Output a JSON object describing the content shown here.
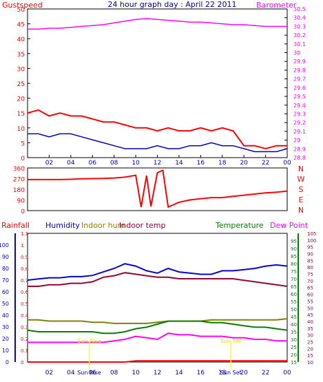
{
  "chart_data": [
    {
      "type": "line",
      "title": "24 hour graph day : April 22 2011",
      "left_label": "Gustspeed",
      "right_label": "Barometer",
      "x_ticks": [
        "02",
        "04",
        "06",
        "08",
        "10",
        "12",
        "14",
        "16",
        "18",
        "20",
        "22",
        "00"
      ],
      "ylim_left": [
        0,
        50
      ],
      "left_ticks": [
        "0",
        "5",
        "10",
        "15",
        "20",
        "25",
        "30",
        "35",
        "40",
        "45",
        "50"
      ],
      "ylim_right": [
        28.8,
        30.5
      ],
      "right_ticks": [
        "28.8",
        "28.9",
        "29",
        "29.1",
        "29.2",
        "29.3",
        "29.4",
        "29.5",
        "29.6",
        "29.7",
        "29.8",
        "29.9",
        "30",
        "30.1",
        "30.2",
        "30.3",
        "30.4",
        "30.5"
      ],
      "x": [
        0,
        1,
        2,
        3,
        4,
        5,
        6,
        7,
        8,
        9,
        10,
        11,
        12,
        13,
        14,
        15,
        16,
        17,
        18,
        19,
        20,
        21,
        22,
        23,
        24
      ],
      "series": [
        {
          "name": "Barometer",
          "axis": "right",
          "color": "#ff00ff",
          "values": [
            30.27,
            30.27,
            30.28,
            30.28,
            30.29,
            30.3,
            30.31,
            30.32,
            30.34,
            30.36,
            30.38,
            30.39,
            30.38,
            30.37,
            30.36,
            30.35,
            30.35,
            30.34,
            30.33,
            30.32,
            30.32,
            30.31,
            30.3,
            30.3,
            30.3
          ]
        },
        {
          "name": "Gustspeed",
          "axis": "left",
          "color": "#ff0000",
          "values": [
            15,
            16,
            14,
            15,
            14,
            14,
            13,
            12,
            12,
            11,
            10,
            10,
            9,
            10,
            9,
            9,
            10,
            9,
            10,
            9,
            4,
            4,
            3,
            4,
            4
          ]
        },
        {
          "name": "Windspeed",
          "axis": "left",
          "color": "#0000bb",
          "values": [
            8,
            8,
            7,
            8,
            8,
            7,
            6,
            5,
            4,
            3,
            3,
            3,
            4,
            3,
            3,
            4,
            4,
            5,
            4,
            4,
            3,
            2,
            2,
            2,
            3
          ]
        }
      ]
    },
    {
      "type": "line",
      "compass": [
        "N",
        "W",
        "S",
        "E",
        "N"
      ],
      "ylim": [
        0,
        360
      ],
      "y_ticks": [
        "0",
        "90",
        "180",
        "270",
        "360"
      ],
      "x_ticks": [
        "02",
        "04",
        "06",
        "08",
        "10",
        "12",
        "14",
        "16",
        "18",
        "20",
        "22",
        "00"
      ],
      "x": [
        0,
        1,
        2,
        3,
        4,
        5,
        6,
        7,
        8,
        9,
        10,
        10.5,
        11,
        11.4,
        12,
        12.5,
        13,
        14,
        15,
        16,
        17,
        18,
        19,
        20,
        21,
        22,
        23,
        24
      ],
      "series": [
        {
          "name": "Wind direction",
          "color": "#ff0000",
          "values": [
            262,
            262,
            262,
            262,
            264,
            268,
            270,
            272,
            275,
            282,
            298,
            30,
            295,
            35,
            320,
            340,
            30,
            70,
            90,
            100,
            110,
            110,
            120,
            130,
            140,
            150,
            155,
            165
          ]
        }
      ]
    },
    {
      "type": "line",
      "legend": [
        "Rainfall",
        "Humidity",
        "Indoor hum",
        "Indoor temp",
        "Temperature",
        "Dew Point"
      ],
      "left_ticks_rain": [
        "0",
        "0.1",
        "0.2",
        "0.3",
        "0.4",
        "0.5",
        "0.6",
        "0.7",
        "0.8",
        "0.9",
        "1",
        "1.1"
      ],
      "left_ticks_hum": [
        "0",
        "10",
        "20",
        "30",
        "40",
        "50",
        "60",
        "70",
        "80",
        "90",
        "100"
      ],
      "right_ticks_temp": [
        "15",
        "20",
        "25",
        "30",
        "35",
        "40",
        "45",
        "50",
        "55",
        "60",
        "65",
        "70",
        "75",
        "80",
        "85",
        "90",
        "95"
      ],
      "right_ticks_dew": [
        "10",
        "15",
        "20",
        "25",
        "30",
        "35",
        "40",
        "45",
        "50",
        "55",
        "60",
        "65",
        "70",
        "75",
        "80",
        "85",
        "90",
        "95",
        "100",
        "105"
      ],
      "x_ticks": [
        "02",
        "04",
        "06",
        "08",
        "10",
        "12",
        "14",
        "16",
        "18",
        "20",
        "22",
        "00"
      ],
      "sun_labels": [
        "Sun Rise",
        "Sun Set"
      ],
      "annotations": [
        "Sun Rise",
        "Sun Set"
      ],
      "x": [
        0,
        1,
        2,
        3,
        4,
        5,
        6,
        7,
        8,
        9,
        10,
        11,
        12,
        13,
        14,
        15,
        16,
        17,
        18,
        19,
        20,
        21,
        22,
        23,
        24
      ],
      "series": [
        {
          "name": "Humidity",
          "axis": "hum",
          "color": "#0000dd",
          "values": [
            70,
            71,
            72,
            72,
            73,
            73,
            74,
            77,
            80,
            84,
            82,
            78,
            76,
            80,
            77,
            76,
            75,
            75,
            78,
            78,
            79,
            80,
            82,
            83,
            82
          ]
        },
        {
          "name": "Indoor temp",
          "axis": "temp",
          "color": "#990033",
          "values": [
            60,
            60,
            61,
            61,
            62,
            62,
            63,
            66,
            67,
            69,
            68,
            67,
            66,
            66,
            65,
            65,
            65,
            65,
            65,
            65,
            64,
            63,
            62,
            61,
            60
          ]
        },
        {
          "name": "Indoor hum",
          "axis": "hum",
          "color": "#808000",
          "values": [
            36,
            36,
            35,
            35,
            35,
            35,
            34,
            34,
            33,
            33,
            33,
            33,
            34,
            35,
            35,
            35,
            35,
            36,
            36,
            36,
            36,
            36,
            36,
            36,
            37
          ]
        },
        {
          "name": "Temperature",
          "axis": "temp",
          "color": "#008000",
          "values": [
            31,
            30,
            30,
            30,
            30,
            30,
            30,
            29,
            29,
            30,
            32,
            33,
            35,
            37,
            37,
            37,
            37,
            36,
            36,
            35,
            34,
            33,
            33,
            32,
            31
          ]
        },
        {
          "name": "Dew Point",
          "axis": "temp",
          "color": "#ff00ff",
          "values": [
            23,
            23,
            23,
            23,
            23,
            23,
            23,
            23,
            24,
            25,
            27,
            26,
            25,
            29,
            28,
            28,
            27,
            27,
            27,
            26,
            26,
            25,
            25,
            24,
            24
          ]
        },
        {
          "name": "Rainfall",
          "axis": "rain",
          "color": "#ff0000",
          "values": [
            0,
            0,
            0,
            0,
            0,
            0,
            0,
            0,
            0,
            0,
            0.01,
            0.01,
            0.01,
            0.01,
            0.01,
            0.01,
            0.01,
            0.01,
            0.01,
            0.01,
            0.01,
            0.01,
            0.01,
            0.01,
            0.01
          ]
        }
      ]
    }
  ]
}
